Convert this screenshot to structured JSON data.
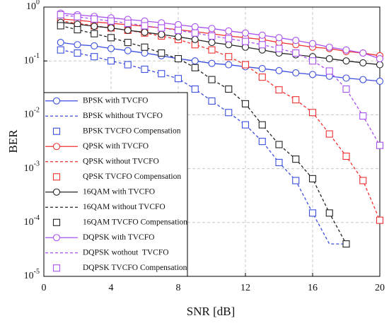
{
  "chart_data": {
    "type": "line",
    "xlabel": "SNR [dB]",
    "ylabel": "BER",
    "x": [
      1,
      2,
      3,
      4,
      5,
      6,
      7,
      8,
      9,
      10,
      11,
      12,
      13,
      14,
      15,
      16,
      17,
      18,
      19,
      20
    ],
    "xlim": [
      0,
      20
    ],
    "xticks": [
      0,
      4,
      8,
      12,
      16,
      20
    ],
    "ylim": [
      1e-05,
      1
    ],
    "yscale": "log",
    "yticks": [
      {
        "value": 1,
        "label": "10^0"
      },
      {
        "value": 0.1,
        "label": "10^-1"
      },
      {
        "value": 0.01,
        "label": "10^-2"
      },
      {
        "value": 0.001,
        "label": "10^-3"
      },
      {
        "value": 0.0001,
        "label": "10^-4"
      },
      {
        "value": 1e-05,
        "label": "10^-5"
      }
    ],
    "grid": true,
    "legend": "lower left",
    "series": [
      {
        "name": "BPSK with TVCFO",
        "color": "#3c4ee0",
        "line": "solid",
        "marker": "circle",
        "values": [
          0.22,
          0.2,
          0.19,
          0.17,
          0.155,
          0.14,
          0.125,
          0.11,
          0.1,
          0.09,
          0.085,
          0.078,
          0.072,
          0.066,
          0.06,
          0.056,
          0.052,
          0.048,
          0.045,
          0.042
        ]
      },
      {
        "name": "BPSK whithout TVCFO",
        "color": "#3c4ee0",
        "line": "dashed",
        "marker": "none",
        "values": [
          0.16,
          0.14,
          0.12,
          0.1,
          0.085,
          0.07,
          0.058,
          0.047,
          0.03,
          0.018,
          0.011,
          0.0065,
          0.0032,
          0.0013,
          0.0006,
          0.00015,
          4e-05,
          4e-05,
          null,
          null
        ]
      },
      {
        "name": "BPSK TVCFO Compensation",
        "color": "#3c4ee0",
        "line": "none",
        "marker": "square",
        "values": [
          0.16,
          0.14,
          0.12,
          0.1,
          0.085,
          0.07,
          0.058,
          0.047,
          0.03,
          0.018,
          0.011,
          0.0065,
          0.0032,
          0.0013,
          0.0006,
          0.00015,
          null,
          null,
          null,
          null
        ]
      },
      {
        "name": "QPSK with TVCFO",
        "color": "#f03030",
        "line": "solid",
        "marker": "circle",
        "values": [
          0.6,
          0.57,
          0.53,
          0.5,
          0.47,
          0.44,
          0.41,
          0.38,
          0.35,
          0.32,
          0.29,
          0.27,
          0.25,
          0.22,
          0.2,
          0.18,
          0.17,
          0.15,
          0.14,
          0.125
        ]
      },
      {
        "name": "QPSK without TVCFO",
        "color": "#f03030",
        "line": "dashed",
        "marker": "none",
        "values": [
          0.55,
          0.5,
          0.45,
          0.41,
          0.37,
          0.33,
          0.29,
          0.25,
          0.2,
          0.16,
          0.12,
          0.085,
          0.05,
          0.029,
          0.019,
          0.011,
          0.0044,
          0.0017,
          0.0006,
          0.00011
        ]
      },
      {
        "name": "QPSK TVCFO Compensation",
        "color": "#f03030",
        "line": "none",
        "marker": "square",
        "values": [
          0.55,
          0.5,
          0.45,
          0.41,
          0.37,
          0.33,
          0.29,
          0.25,
          0.2,
          0.16,
          0.12,
          0.085,
          0.05,
          0.029,
          0.019,
          0.011,
          0.0044,
          0.0017,
          0.0006,
          0.00011
        ]
      },
      {
        "name": "16QAM with TVCFO",
        "color": "#222222",
        "line": "solid",
        "marker": "circle",
        "values": [
          0.52,
          0.48,
          0.44,
          0.41,
          0.37,
          0.34,
          0.31,
          0.28,
          0.25,
          0.22,
          0.2,
          0.18,
          0.16,
          0.14,
          0.13,
          0.12,
          0.11,
          0.1,
          0.092,
          0.085
        ]
      },
      {
        "name": "16QAM without TVCFO",
        "color": "#222222",
        "line": "dashed",
        "marker": "none",
        "values": [
          0.45,
          0.38,
          0.32,
          0.27,
          0.22,
          0.18,
          0.14,
          0.11,
          0.075,
          0.045,
          0.03,
          0.016,
          0.0065,
          0.0028,
          0.0015,
          0.00065,
          0.00015,
          4e-05,
          null,
          null
        ]
      },
      {
        "name": "16QAM TVCFO Compensation",
        "color": "#222222",
        "line": "none",
        "marker": "square",
        "values": [
          0.45,
          0.38,
          0.32,
          0.27,
          0.22,
          0.18,
          0.14,
          0.11,
          0.075,
          0.045,
          0.03,
          0.016,
          0.0065,
          0.0028,
          0.0015,
          0.00065,
          0.00015,
          4e-05,
          null,
          null
        ]
      },
      {
        "name": "DQPSK with TVCFO",
        "color": "#a850f0",
        "line": "solid",
        "marker": "circle",
        "values": [
          0.77,
          0.72,
          0.67,
          0.63,
          0.59,
          0.55,
          0.51,
          0.47,
          0.43,
          0.4,
          0.36,
          0.33,
          0.3,
          0.27,
          0.24,
          0.21,
          0.18,
          0.16,
          0.14,
          0.11
        ]
      },
      {
        "name": "DQPSK wothout  TVCFO",
        "color": "#a850f0",
        "line": "dashed",
        "marker": "none",
        "values": [
          0.72,
          0.66,
          0.6,
          0.55,
          0.5,
          0.45,
          0.41,
          0.37,
          0.33,
          0.29,
          0.26,
          0.23,
          0.2,
          0.17,
          0.14,
          0.1,
          0.065,
          0.03,
          0.0095,
          0.0027
        ]
      },
      {
        "name": "DQPSK TVCFO Compensation",
        "color": "#a850f0",
        "line": "none",
        "marker": "square",
        "values": [
          0.72,
          0.66,
          0.6,
          0.55,
          0.5,
          0.45,
          0.41,
          0.37,
          0.33,
          0.29,
          0.26,
          0.23,
          0.2,
          0.17,
          0.14,
          0.1,
          0.065,
          0.03,
          0.0095,
          0.0027
        ]
      }
    ]
  }
}
